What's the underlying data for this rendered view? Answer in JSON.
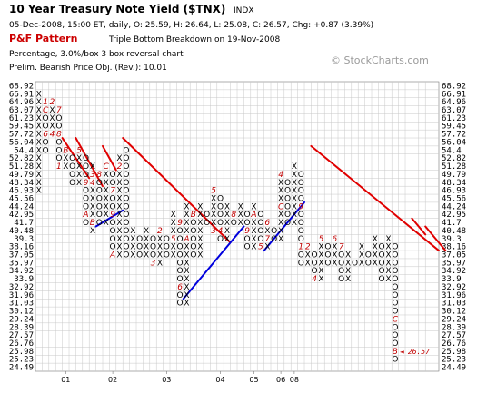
{
  "header": {
    "title": "10 Year Treasury Note Yield ($TNX)",
    "exchange": "INDX",
    "line1": "05-Dec-2008, 15:00 ET, daily, O: 25.59, H: 26.64, L: 25.08, C: 26.57, Chg: +0.87 (3.39%)",
    "pattern_label": "P&F Pattern",
    "pattern_text": "Triple Bottom Breakdown on 19-Nov-2008",
    "line3": "Percentage, 3.0%/box 3 box reversal chart",
    "line4": "Prelim. Bearish Price Obj. (Rev.): 10.01",
    "watermark": "© StockCharts.com"
  },
  "chart_data": {
    "type": "point-and-figure",
    "scale": "logarithmic",
    "box_size_percent": 3.0,
    "reversal": 3,
    "y_levels": [
      "68.92",
      "66.91",
      "64.96",
      "63.07",
      "61.23",
      "59.45",
      "57.72",
      "56.04",
      "54.4",
      "52.82",
      "51.28",
      "49.79",
      "48.34",
      "46.93",
      "45.56",
      "44.24",
      "42.95",
      "41.7",
      "40.48",
      "39.3",
      "38.16",
      "37.05",
      "35.97",
      "34.92",
      "33.9",
      "32.92",
      "31.96",
      "31.03",
      "30.12",
      "29.24",
      "28.39",
      "27.57",
      "26.76",
      "25.98",
      "25.23",
      "24.49"
    ],
    "x_tick_labels": [
      "01",
      "02",
      "03",
      "04",
      "05",
      "06",
      "08"
    ],
    "columns": [
      {
        "type": "X",
        "from": "46.93",
        "to": "66.91"
      },
      {
        "type": "O",
        "from": "64.96",
        "to": "54.4",
        "labels": [
          {
            "at": "64.96",
            "t": "1"
          },
          {
            "at": "63.07",
            "t": "C"
          },
          {
            "at": "57.72",
            "t": "6"
          }
        ]
      },
      {
        "type": "X",
        "from": "57.72",
        "to": "64.96",
        "labels": [
          {
            "at": "64.96",
            "t": "2"
          },
          {
            "at": "57.72",
            "t": "4"
          }
        ]
      },
      {
        "type": "O",
        "from": "63.07",
        "to": "51.28",
        "labels": [
          {
            "at": "63.07",
            "t": "7"
          },
          {
            "at": "57.72",
            "t": "8"
          },
          {
            "at": "51.28",
            "t": "1"
          }
        ]
      },
      {
        "type": "X",
        "from": "51.28",
        "to": "54.4",
        "labels": [
          {
            "at": "54.4",
            "t": "B"
          }
        ]
      },
      {
        "type": "O",
        "from": "52.82",
        "to": "48.34"
      },
      {
        "type": "X",
        "from": "48.34",
        "to": "54.4",
        "labels": [
          {
            "at": "54.4",
            "t": "5"
          }
        ]
      },
      {
        "type": "O",
        "from": "52.82",
        "to": "41.7",
        "labels": [
          {
            "at": "48.34",
            "t": "9"
          },
          {
            "at": "42.95",
            "t": "A"
          }
        ]
      },
      {
        "type": "X",
        "from": "40.48",
        "to": "51.28",
        "labels": [
          {
            "at": "49.79",
            "t": "3"
          },
          {
            "at": "48.34",
            "t": "4"
          },
          {
            "at": "41.7",
            "t": "B"
          }
        ]
      },
      {
        "type": "O",
        "from": "49.79",
        "to": "41.7",
        "labels": [
          {
            "at": "49.79",
            "t": "8"
          }
        ]
      },
      {
        "type": "X",
        "from": "41.7",
        "to": "51.28",
        "labels": [
          {
            "at": "51.28",
            "t": "C"
          }
        ]
      },
      {
        "type": "O",
        "from": "49.79",
        "to": "37.05",
        "labels": [
          {
            "at": "51.28",
            "t": "1"
          },
          {
            "at": "46.93",
            "t": "7"
          },
          {
            "at": "42.95",
            "t": "9"
          },
          {
            "at": "37.05",
            "t": "A"
          }
        ]
      },
      {
        "type": "X",
        "from": "37.05",
        "to": "52.82",
        "labels": [
          {
            "at": "52.82",
            "t": "X"
          },
          {
            "at": "51.28",
            "t": "2"
          }
        ]
      },
      {
        "type": "O",
        "from": "54.4",
        "to": "37.05"
      },
      {
        "type": "X",
        "from": "37.05",
        "to": "40.48",
        "labels": [
          {
            "at": "41.7",
            "t": "C"
          }
        ]
      },
      {
        "type": "O",
        "from": "39.3",
        "to": "37.05"
      },
      {
        "type": "X",
        "from": "37.05",
        "to": "40.48"
      },
      {
        "type": "O",
        "from": "39.3",
        "to": "35.97",
        "labels": [
          {
            "at": "35.97",
            "t": "3"
          }
        ]
      },
      {
        "type": "X",
        "from": "35.97",
        "to": "40.48",
        "labels": [
          {
            "at": "40.48",
            "t": "2"
          }
        ]
      },
      {
        "type": "O",
        "from": "39.3",
        "to": "37.05"
      },
      {
        "type": "X",
        "from": "37.05",
        "to": "42.95",
        "labels": [
          {
            "at": "42.95",
            "t": "X"
          },
          {
            "at": "39.3",
            "t": "5"
          }
        ]
      },
      {
        "type": "O",
        "from": "41.7",
        "to": "31.03",
        "labels": [
          {
            "at": "41.7",
            "t": "9"
          },
          {
            "at": "32.92",
            "t": "6"
          }
        ]
      },
      {
        "type": "X",
        "from": "31.03",
        "to": "44.24",
        "labels": [
          {
            "at": "44.24",
            "t": "X"
          },
          {
            "at": "39.3",
            "t": "A"
          }
        ]
      },
      {
        "type": "O",
        "from": "42.95",
        "to": "37.05",
        "labels": [
          {
            "at": "42.95",
            "t": "B"
          }
        ]
      },
      {
        "type": "X",
        "from": "37.05",
        "to": "44.24"
      },
      {
        "type": "O",
        "from": "42.95",
        "to": "41.7"
      },
      {
        "type": "X",
        "from": "40.48",
        "to": "46.93",
        "labels": [
          {
            "at": "46.93",
            "t": "5"
          },
          {
            "at": "40.48",
            "t": "3"
          }
        ]
      },
      {
        "type": "O",
        "from": "45.56",
        "to": "39.3",
        "labels": [
          {
            "at": "46.93",
            "t": "7"
          },
          {
            "at": "40.48",
            "t": "4"
          }
        ]
      },
      {
        "type": "X",
        "from": "39.3",
        "to": "44.24"
      },
      {
        "type": "O",
        "from": "42.95",
        "to": "41.7",
        "labels": [
          {
            "at": "42.95",
            "t": "8"
          }
        ]
      },
      {
        "type": "X",
        "from": "41.7",
        "to": "44.24"
      },
      {
        "type": "O",
        "from": "42.95",
        "to": "38.16",
        "labels": [
          {
            "at": "40.48",
            "t": "9"
          }
        ]
      },
      {
        "type": "X",
        "from": "38.16",
        "to": "44.24",
        "labels": [
          {
            "at": "42.95",
            "t": "A"
          }
        ]
      },
      {
        "type": "O",
        "from": "42.95",
        "to": "38.16",
        "labels": [
          {
            "at": "38.16",
            "t": "5"
          }
        ]
      },
      {
        "type": "X",
        "from": "38.16",
        "to": "41.7",
        "labels": [
          {
            "at": "41.7",
            "t": "6"
          },
          {
            "at": "39.3",
            "t": "7"
          }
        ]
      },
      {
        "type": "O",
        "from": "40.48",
        "to": "39.3"
      },
      {
        "type": "X",
        "from": "39.3",
        "to": "49.79",
        "labels": [
          {
            "at": "49.79",
            "t": "4"
          },
          {
            "at": "44.24",
            "t": "C"
          }
        ]
      },
      {
        "type": "O",
        "from": "48.34",
        "to": "41.7",
        "labels": [
          {
            "at": "49.79",
            "t": "9"
          }
        ]
      },
      {
        "type": "X",
        "from": "41.7",
        "to": "51.28",
        "labels": [
          {
            "at": "51.28",
            "t": "X"
          }
        ]
      },
      {
        "type": "O",
        "from": "49.79",
        "to": "35.97",
        "labels": [
          {
            "at": "44.24",
            "t": "9"
          },
          {
            "at": "38.16",
            "t": "1"
          }
        ]
      },
      {
        "type": "X",
        "from": "35.97",
        "to": "38.16",
        "labels": [
          {
            "at": "38.16",
            "t": "2"
          }
        ]
      },
      {
        "type": "O",
        "from": "37.05",
        "to": "33.9",
        "labels": [
          {
            "at": "33.9",
            "t": "4"
          }
        ]
      },
      {
        "type": "X",
        "from": "33.9",
        "to": "39.3",
        "labels": [
          {
            "at": "39.3",
            "t": "5"
          }
        ]
      },
      {
        "type": "O",
        "from": "38.16",
        "to": "35.97"
      },
      {
        "type": "X",
        "from": "35.97",
        "to": "39.3",
        "labels": [
          {
            "at": "39.3",
            "t": "6"
          }
        ]
      },
      {
        "type": "O",
        "from": "38.16",
        "to": "33.9",
        "labels": [
          {
            "at": "38.16",
            "t": "7"
          }
        ]
      },
      {
        "type": "X",
        "from": "33.9",
        "to": "37.05"
      },
      {
        "type": "O",
        "from": "35.97",
        "to": "35.97",
        "labels": [
          {
            "at": "37.05",
            "t": "9"
          }
        ]
      },
      {
        "type": "X",
        "from": "35.97",
        "to": "38.16"
      },
      {
        "type": "O",
        "from": "37.05",
        "to": "35.97"
      },
      {
        "type": "X",
        "from": "35.97",
        "to": "39.3"
      },
      {
        "type": "O",
        "from": "38.16",
        "to": "33.9"
      },
      {
        "type": "X",
        "from": "33.9",
        "to": "39.3"
      },
      {
        "type": "O",
        "from": "38.16",
        "to": "25.23",
        "labels": [
          {
            "at": "29.24",
            "t": "C"
          },
          {
            "at": "25.98",
            "t": "B"
          }
        ]
      }
    ],
    "last_price_label": "26.57",
    "trendlines": [
      {
        "color": "red",
        "kind": "bearish resistance",
        "segments": [
          {
            "from": [
              "56.04",
              4
            ],
            "to": [
              "49.79",
              7
            ]
          },
          {
            "from": [
              "56.04",
              6
            ],
            "to": [
              "48.34",
              9
            ]
          },
          {
            "from": [
              "54.4",
              10
            ],
            "to": [
              "51.28",
              11
            ]
          },
          {
            "from": [
              "56.04",
              13
            ],
            "to": [
              "39.3",
              28
            ]
          },
          {
            "from": [
              "54.4",
              41
            ],
            "to": [
              "38.16",
              59
            ]
          },
          {
            "from": [
              "41.7",
              56
            ],
            "to": [
              "40.48",
              57
            ]
          },
          {
            "from": [
              "40.48",
              58
            ],
            "to": [
              "38.16",
              60
            ]
          }
        ]
      },
      {
        "color": "blue",
        "kind": "bullish support",
        "segments": [
          {
            "from": [
              "40.48",
              9
            ],
            "to": [
              "44.24",
              12
            ]
          },
          {
            "from": [
              "31.03",
              22
            ],
            "to": [
              "41.7",
              30
            ]
          },
          {
            "from": [
              "37.05",
              34
            ],
            "to": [
              "45.56",
              39
            ]
          }
        ]
      }
    ],
    "grid": true
  }
}
